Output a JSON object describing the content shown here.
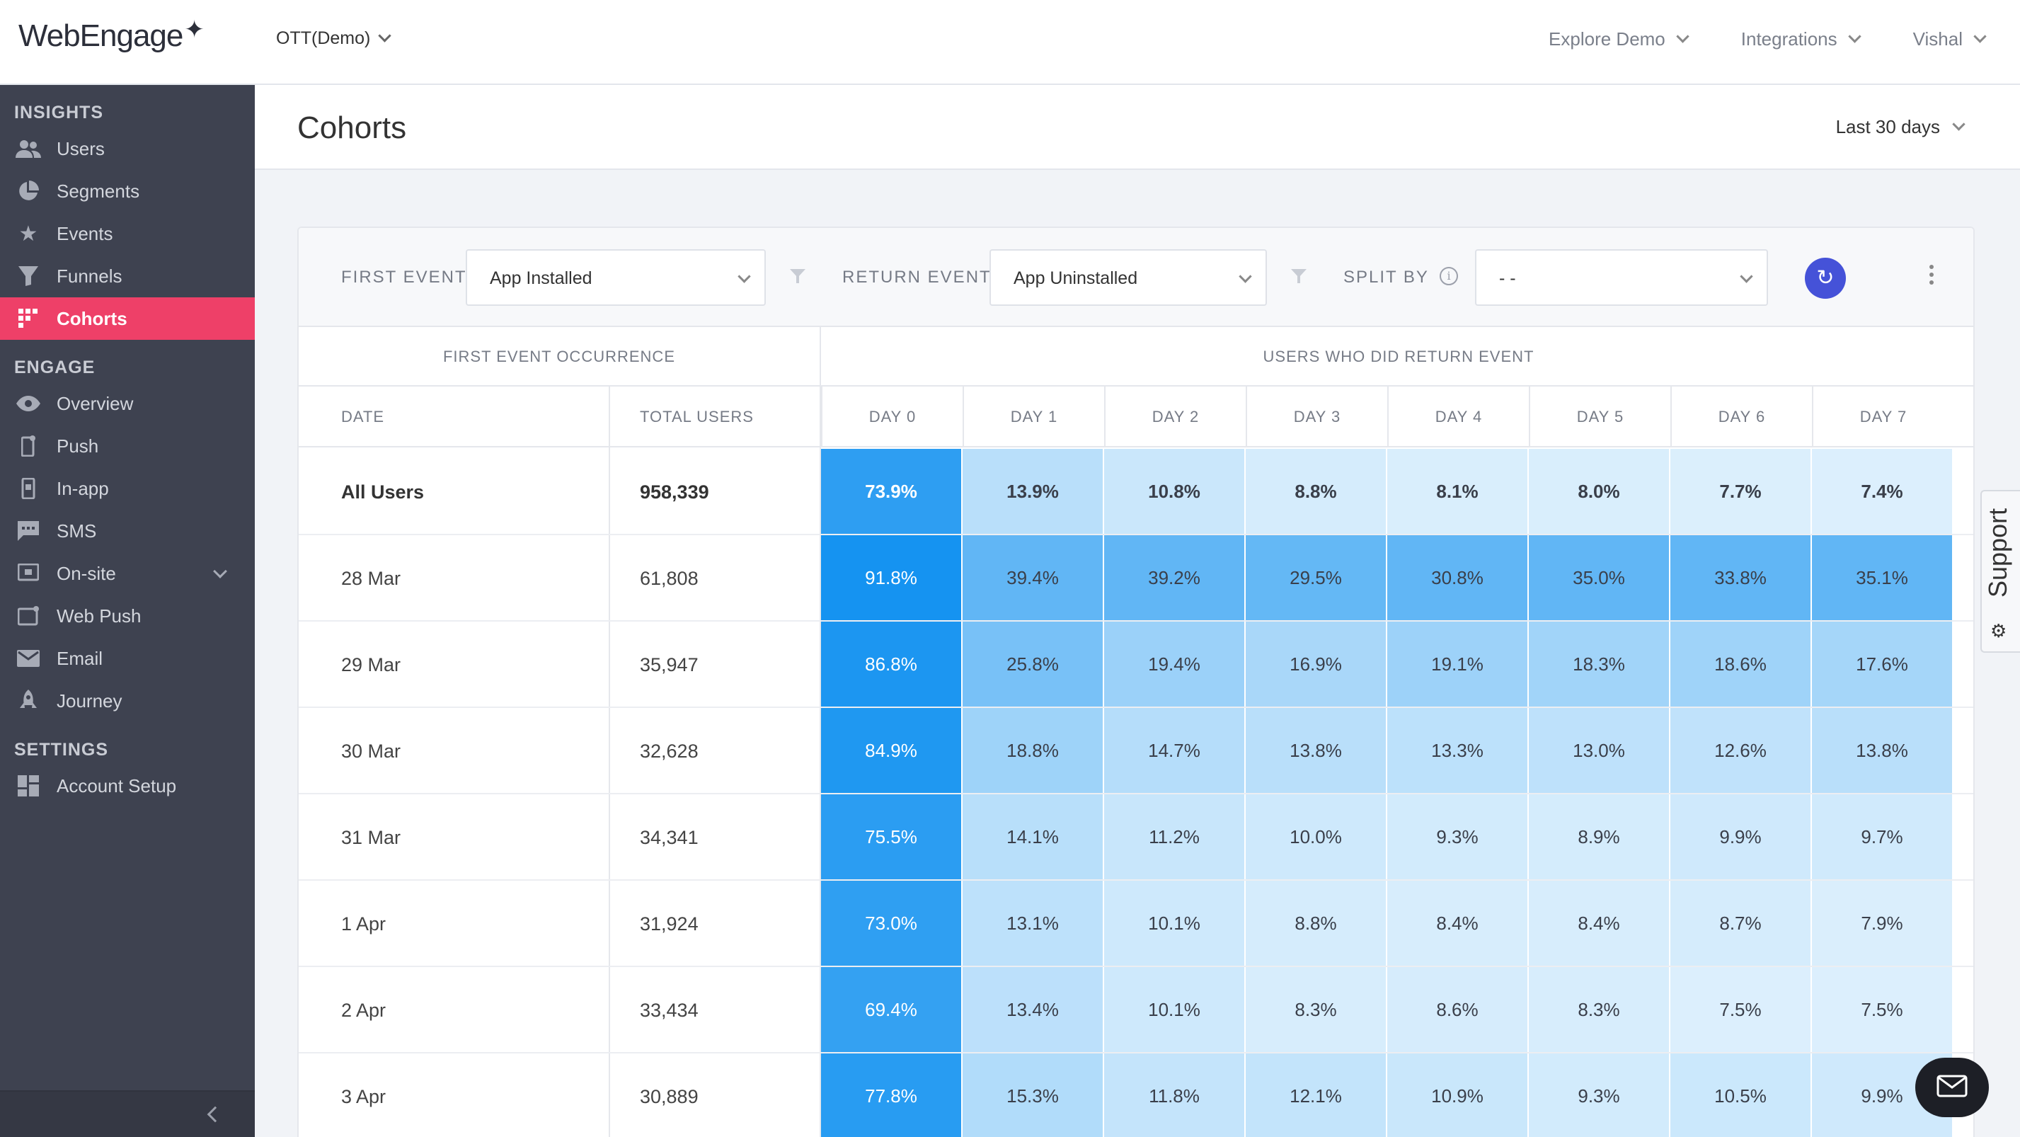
{
  "brand": {
    "logo_text": "WebEngage"
  },
  "topbar": {
    "project": "OTT(Demo)",
    "nav": [
      "Explore Demo",
      "Integrations",
      "Vishal"
    ]
  },
  "sidebar": {
    "sections": [
      {
        "title": "INSIGHTS",
        "items": [
          {
            "label": "Users",
            "icon": "users-icon"
          },
          {
            "label": "Segments",
            "icon": "pie-icon"
          },
          {
            "label": "Events",
            "icon": "star-icon"
          },
          {
            "label": "Funnels",
            "icon": "funnel-icon"
          },
          {
            "label": "Cohorts",
            "icon": "grid-icon",
            "active": true
          }
        ]
      },
      {
        "title": "ENGAGE",
        "items": [
          {
            "label": "Overview",
            "icon": "eye-icon"
          },
          {
            "label": "Push",
            "icon": "phone-icon"
          },
          {
            "label": "In-app",
            "icon": "phone-icon"
          },
          {
            "label": "SMS",
            "icon": "chat-icon"
          },
          {
            "label": "On-site",
            "icon": "monitor-icon",
            "expandable": true
          },
          {
            "label": "Web Push",
            "icon": "window-icon"
          },
          {
            "label": "Email",
            "icon": "mail-icon"
          },
          {
            "label": "Journey",
            "icon": "rocket-icon"
          }
        ]
      },
      {
        "title": "SETTINGS",
        "items": [
          {
            "label": "Account Setup",
            "icon": "dashboard-icon"
          }
        ]
      }
    ]
  },
  "page": {
    "title": "Cohorts",
    "date_range": "Last 30 days"
  },
  "filters": {
    "first_event_label": "FIRST EVENT",
    "first_event_value": "App Installed",
    "return_event_label": "RETURN EVENT",
    "return_event_value": "App Uninstalled",
    "split_by_label": "SPLIT BY",
    "split_by_value": "- -"
  },
  "table": {
    "group_left": "FIRST EVENT OCCURRENCE",
    "group_right": "USERS WHO DID RETURN EVENT",
    "col_date": "DATE",
    "col_total": "TOTAL USERS",
    "days": [
      "DAY 0",
      "DAY 1",
      "DAY 2",
      "DAY 3",
      "DAY 4",
      "DAY 5",
      "DAY 6",
      "DAY 7"
    ],
    "rows": [
      {
        "date": "All Users",
        "total": "958,339",
        "values": [
          "73.9%",
          "13.9%",
          "10.8%",
          "8.8%",
          "8.1%",
          "8.0%",
          "7.7%",
          "7.4%"
        ]
      },
      {
        "date": "28 Mar",
        "total": "61,808",
        "values": [
          "91.8%",
          "39.4%",
          "39.2%",
          "29.5%",
          "30.8%",
          "35.0%",
          "33.8%",
          "35.1%"
        ]
      },
      {
        "date": "29 Mar",
        "total": "35,947",
        "values": [
          "86.8%",
          "25.8%",
          "19.4%",
          "16.9%",
          "19.1%",
          "18.3%",
          "18.6%",
          "17.6%"
        ]
      },
      {
        "date": "30 Mar",
        "total": "32,628",
        "values": [
          "84.9%",
          "18.8%",
          "14.7%",
          "13.8%",
          "13.3%",
          "13.0%",
          "12.6%",
          "13.8%"
        ]
      },
      {
        "date": "31 Mar",
        "total": "34,341",
        "values": [
          "75.5%",
          "14.1%",
          "11.2%",
          "10.0%",
          "9.3%",
          "8.9%",
          "9.9%",
          "9.7%"
        ]
      },
      {
        "date": "1 Apr",
        "total": "31,924",
        "values": [
          "73.0%",
          "13.1%",
          "10.1%",
          "8.8%",
          "8.4%",
          "8.4%",
          "8.7%",
          "7.9%"
        ]
      },
      {
        "date": "2 Apr",
        "total": "33,434",
        "values": [
          "69.4%",
          "13.4%",
          "10.1%",
          "8.3%",
          "8.6%",
          "8.3%",
          "7.5%",
          "7.5%"
        ]
      },
      {
        "date": "3 Apr",
        "total": "30,889",
        "values": [
          "77.8%",
          "15.3%",
          "11.8%",
          "12.1%",
          "10.9%",
          "9.3%",
          "10.5%",
          "9.9%"
        ]
      }
    ]
  },
  "support": {
    "label": "Support"
  },
  "colors": {
    "accent": "#ee4068",
    "sidebar_bg": "#3e4250",
    "refresh": "#4552d8",
    "heat_dark": "#0a8ef0",
    "heat_light": "#e4f3fd"
  }
}
